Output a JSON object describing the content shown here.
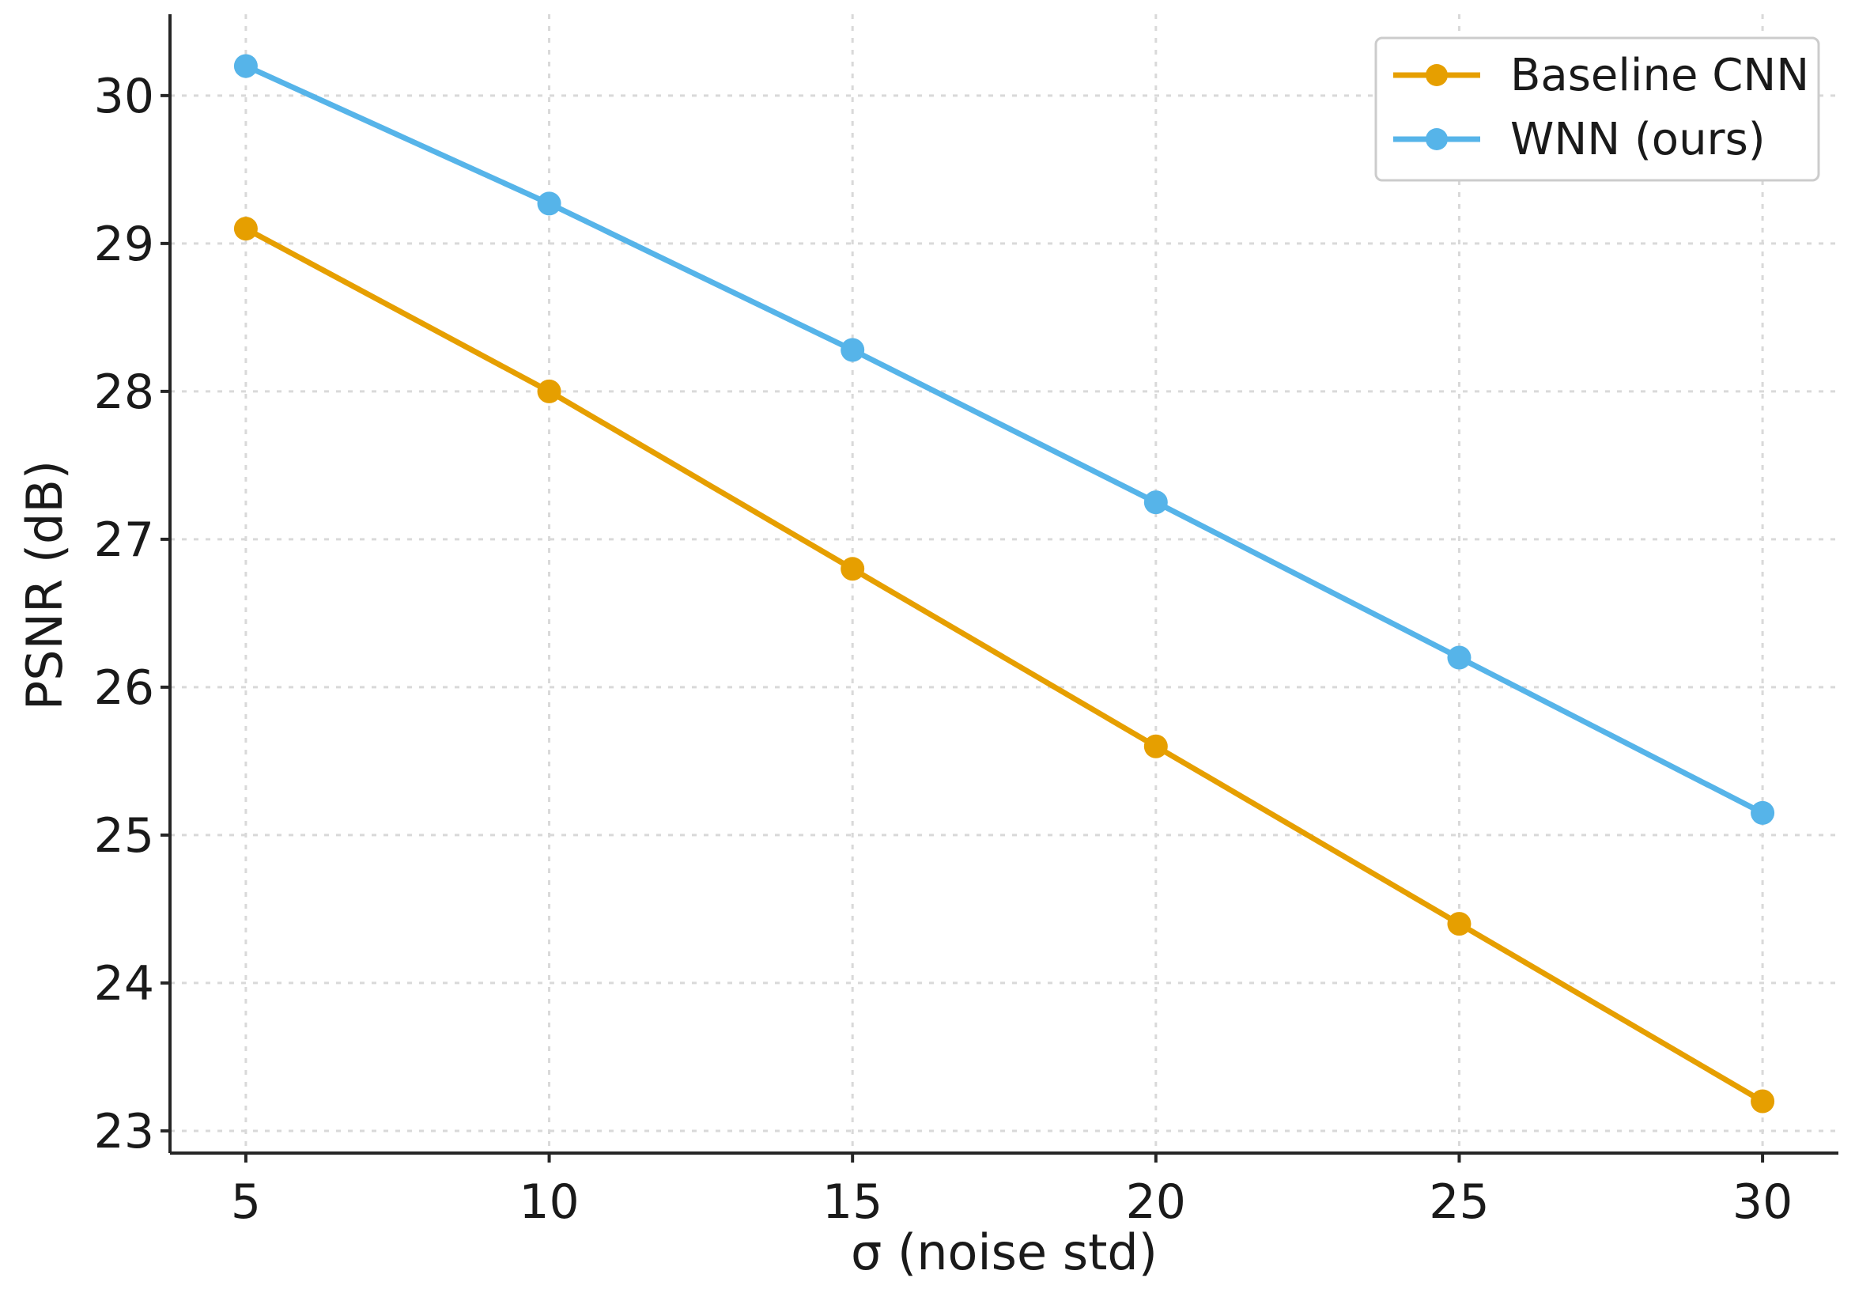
{
  "chart_data": {
    "type": "line",
    "title": "",
    "xlabel": "σ (noise std)",
    "ylabel": "PSNR (dB)",
    "x": [
      5,
      10,
      15,
      20,
      25,
      30
    ],
    "xlim": [
      3.75,
      31.25
    ],
    "ylim": [
      22.85,
      30.55
    ],
    "xticks": [
      5,
      10,
      15,
      20,
      25,
      30
    ],
    "yticks": [
      23,
      24,
      25,
      26,
      27,
      28,
      29,
      30
    ],
    "grid": true,
    "legend_position": "top-right",
    "series": [
      {
        "name": "Baseline CNN",
        "color": "#E69F00",
        "values": [
          29.1,
          28.0,
          26.8,
          25.6,
          24.4,
          23.2
        ]
      },
      {
        "name": "WNN (ours)",
        "color": "#56B4E9",
        "values": [
          30.2,
          29.27,
          28.28,
          27.25,
          26.2,
          25.15
        ]
      }
    ]
  }
}
